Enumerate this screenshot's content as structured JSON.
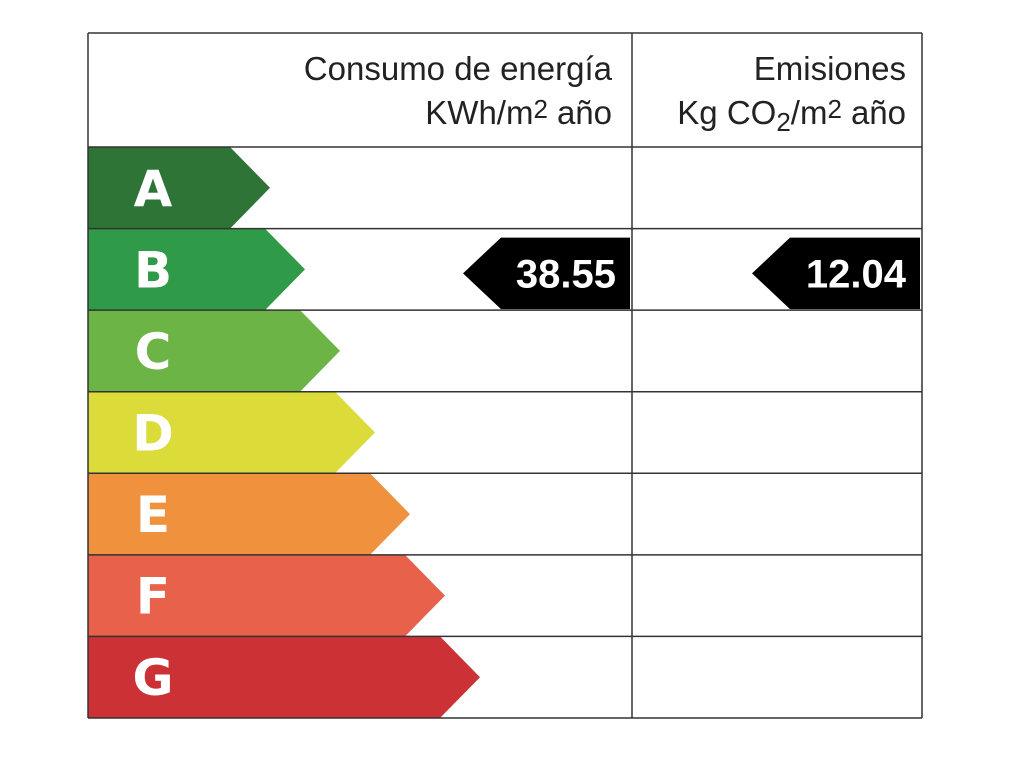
{
  "header": {
    "energy": {
      "title": "Consumo de energía",
      "unit_parts": [
        "KWh/m",
        "2",
        "año"
      ]
    },
    "emissions": {
      "title": "Emisiones",
      "unit_parts": [
        "Kg CO",
        "2",
        "/m",
        "2",
        "año"
      ]
    }
  },
  "ratings": [
    {
      "label": "A",
      "color": "#2e7437"
    },
    {
      "label": "B",
      "color": "#2f9a47",
      "energy": 38.55,
      "emissions": 12.04
    },
    {
      "label": "C",
      "color": "#6cb445"
    },
    {
      "label": "D",
      "color": "#dbdc3a"
    },
    {
      "label": "E",
      "color": "#f0913d"
    },
    {
      "label": "F",
      "color": "#e8624b"
    },
    {
      "label": "G",
      "color": "#cc3235"
    }
  ]
}
